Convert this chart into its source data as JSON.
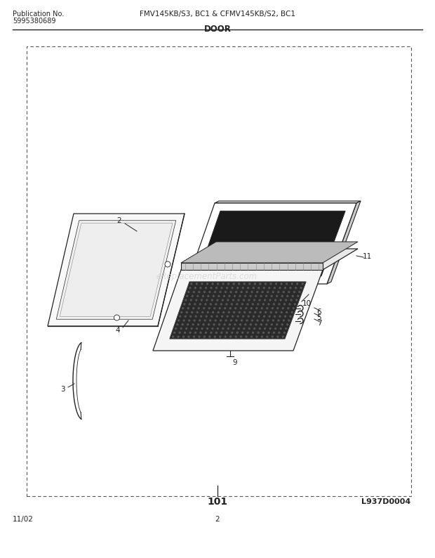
{
  "title_left1": "Publication No.",
  "title_left2": "5995380689",
  "title_center": "FMV145KB/S3, BC1 & CFMV145KB/S2, BC1",
  "section_title": "DOOR",
  "diagram_id": "L937D0004",
  "assembly_number": "101",
  "page_number": "2",
  "date": "11/02",
  "bg_color": "#ffffff",
  "watermark_text": "eReplacementParts.com",
  "line_color": "#222222",
  "lw_main": 0.9,
  "lw_thin": 0.5
}
